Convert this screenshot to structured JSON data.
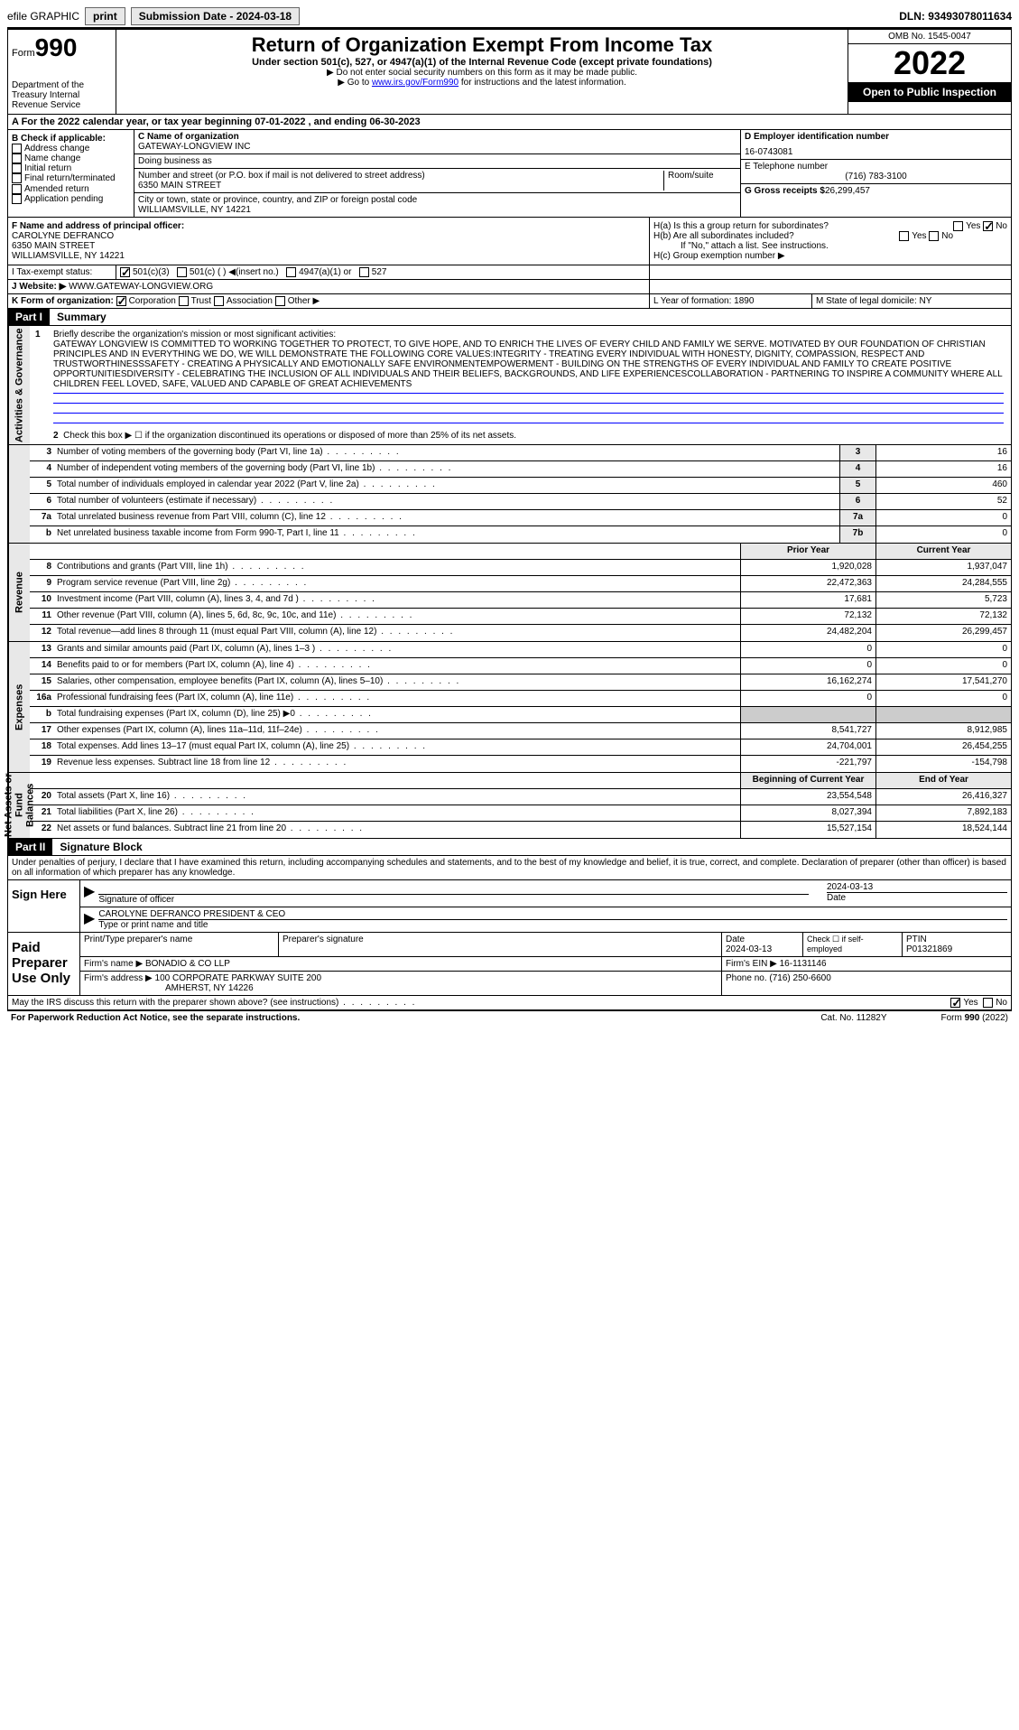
{
  "topbar": {
    "efile": "efile GRAPHIC",
    "print": "print",
    "subdate_lbl": "Submission Date - 2024-03-18",
    "dln": "DLN: 93493078011634"
  },
  "header": {
    "form": "Form",
    "form_num": "990",
    "dept": "Department of the Treasury Internal Revenue Service",
    "title": "Return of Organization Exempt From Income Tax",
    "sub": "Under section 501(c), 527, or 4947(a)(1) of the Internal Revenue Code (except private foundations)",
    "note1": "▶ Do not enter social security numbers on this form as it may be made public.",
    "note2_pre": "▶ Go to ",
    "note2_link": "www.irs.gov/Form990",
    "note2_post": " for instructions and the latest information.",
    "omb": "OMB No. 1545-0047",
    "year": "2022",
    "open": "Open to Public Inspection"
  },
  "rowA": "A For the 2022 calendar year, or tax year beginning 07-01-2022   , and ending 06-30-2023",
  "colB": {
    "hdr": "B Check if applicable:",
    "items": [
      "Address change",
      "Name change",
      "Initial return",
      "Final return/terminated",
      "Amended return",
      "Application pending"
    ]
  },
  "colC": {
    "name_lbl": "C Name of organization",
    "name": "GATEWAY-LONGVIEW INC",
    "dba_lbl": "Doing business as",
    "dba": "",
    "addr_lbl": "Number and street (or P.O. box if mail is not delivered to street address)",
    "addr": "6350 MAIN STREET",
    "room_lbl": "Room/suite",
    "city_lbl": "City or town, state or province, country, and ZIP or foreign postal code",
    "city": "WILLIAMSVILLE, NY  14221"
  },
  "colD": {
    "ein_lbl": "D Employer identification number",
    "ein": "16-0743081",
    "tel_lbl": "E Telephone number",
    "tel": "(716) 783-3100",
    "gross_lbl": "G Gross receipts $",
    "gross": "26,299,457"
  },
  "colF": {
    "lbl": "F  Name and address of principal officer:",
    "name": "CAROLYNE DEFRANCO",
    "addr1": "6350 MAIN STREET",
    "addr2": "WILLIAMSVILLE, NY  14221"
  },
  "colH": {
    "ha": "H(a)  Is this a group return for subordinates?",
    "hb": "H(b)  Are all subordinates included?",
    "hb_note": "If \"No,\" attach a list. See instructions.",
    "hc": "H(c)  Group exemption number ▶",
    "yes": "Yes",
    "no": "No"
  },
  "status": {
    "i_lbl": "I    Tax-exempt status:",
    "opts": [
      "501(c)(3)",
      "501(c) (  ) ◀(insert no.)",
      "4947(a)(1) or",
      "527"
    ],
    "j_lbl": "J   Website: ▶",
    "website": "WWW.GATEWAY-LONGVIEW.ORG"
  },
  "rowK": {
    "k_lbl": "K Form of organization:",
    "opts": [
      "Corporation",
      "Trust",
      "Association",
      "Other ▶"
    ],
    "l_lbl": "L Year of formation: 1890",
    "m_lbl": "M State of legal domicile: NY"
  },
  "part1": {
    "hdr": "Part I",
    "title": "Summary",
    "mission_lbl": "Briefly describe the organization's mission or most significant activities:",
    "mission": "GATEWAY LONGVIEW IS COMMITTED TO WORKING TOGETHER TO PROTECT, TO GIVE HOPE, AND TO ENRICH THE LIVES OF EVERY CHILD AND FAMILY WE SERVE. MOTIVATED BY OUR FOUNDATION OF CHRISTIAN PRINCIPLES AND IN EVERYTHING WE DO, WE WILL DEMONSTRATE THE FOLLOWING CORE VALUES:INTEGRITY - TREATING EVERY INDIVIDUAL WITH HONESTY, DIGNITY, COMPASSION, RESPECT AND TRUSTWORTHINESSSAFETY - CREATING A PHYSICALLY AND EMOTIONALLY SAFE ENVIRONMENTEMPOWERMENT - BUILDING ON THE STRENGTHS OF EVERY INDIVIDUAL AND FAMILY TO CREATE POSITIVE OPPORTUNITIESDIVERSITY - CELEBRATING THE INCLUSION OF ALL INDIVIDUALS AND THEIR BELIEFS, BACKGROUNDS, AND LIFE EXPERIENCESCOLLABORATION - PARTNERING TO INSPIRE A COMMUNITY WHERE ALL CHILDREN FEEL LOVED, SAFE, VALUED AND CAPABLE OF GREAT ACHIEVEMENTS",
    "line2": "Check this box ▶ ☐  if the organization discontinued its operations or disposed of more than 25% of its net assets."
  },
  "vtabs": {
    "gov": "Activities & Governance",
    "rev": "Revenue",
    "exp": "Expenses",
    "net": "Net Assets or Fund Balances"
  },
  "lines_gov": [
    {
      "n": "3",
      "d": "Number of voting members of the governing body (Part VI, line 1a)",
      "box": "3",
      "v": "16"
    },
    {
      "n": "4",
      "d": "Number of independent voting members of the governing body (Part VI, line 1b)",
      "box": "4",
      "v": "16"
    },
    {
      "n": "5",
      "d": "Total number of individuals employed in calendar year 2022 (Part V, line 2a)",
      "box": "5",
      "v": "460"
    },
    {
      "n": "6",
      "d": "Total number of volunteers (estimate if necessary)",
      "box": "6",
      "v": "52"
    },
    {
      "n": "7a",
      "d": "Total unrelated business revenue from Part VIII, column (C), line 12",
      "box": "7a",
      "v": "0"
    },
    {
      "n": "b",
      "d": "Net unrelated business taxable income from Form 990-T, Part I, line 11",
      "box": "7b",
      "v": "0"
    }
  ],
  "cols": {
    "prior": "Prior Year",
    "curr": "Current Year",
    "beg": "Beginning of Current Year",
    "end": "End of Year"
  },
  "lines_rev": [
    {
      "n": "8",
      "d": "Contributions and grants (Part VIII, line 1h)",
      "p": "1,920,028",
      "c": "1,937,047"
    },
    {
      "n": "9",
      "d": "Program service revenue (Part VIII, line 2g)",
      "p": "22,472,363",
      "c": "24,284,555"
    },
    {
      "n": "10",
      "d": "Investment income (Part VIII, column (A), lines 3, 4, and 7d )",
      "p": "17,681",
      "c": "5,723"
    },
    {
      "n": "11",
      "d": "Other revenue (Part VIII, column (A), lines 5, 6d, 8c, 9c, 10c, and 11e)",
      "p": "72,132",
      "c": "72,132"
    },
    {
      "n": "12",
      "d": "Total revenue—add lines 8 through 11 (must equal Part VIII, column (A), line 12)",
      "p": "24,482,204",
      "c": "26,299,457"
    }
  ],
  "lines_exp": [
    {
      "n": "13",
      "d": "Grants and similar amounts paid (Part IX, column (A), lines 1–3 )",
      "p": "0",
      "c": "0"
    },
    {
      "n": "14",
      "d": "Benefits paid to or for members (Part IX, column (A), line 4)",
      "p": "0",
      "c": "0"
    },
    {
      "n": "15",
      "d": "Salaries, other compensation, employee benefits (Part IX, column (A), lines 5–10)",
      "p": "16,162,274",
      "c": "17,541,270"
    },
    {
      "n": "16a",
      "d": "Professional fundraising fees (Part IX, column (A), line 11e)",
      "p": "0",
      "c": "0"
    },
    {
      "n": "b",
      "d": "Total fundraising expenses (Part IX, column (D), line 25) ▶0",
      "p": "",
      "c": "",
      "shade": true
    },
    {
      "n": "17",
      "d": "Other expenses (Part IX, column (A), lines 11a–11d, 11f–24e)",
      "p": "8,541,727",
      "c": "8,912,985"
    },
    {
      "n": "18",
      "d": "Total expenses. Add lines 13–17 (must equal Part IX, column (A), line 25)",
      "p": "24,704,001",
      "c": "26,454,255"
    },
    {
      "n": "19",
      "d": "Revenue less expenses. Subtract line 18 from line 12",
      "p": "-221,797",
      "c": "-154,798"
    }
  ],
  "lines_net": [
    {
      "n": "20",
      "d": "Total assets (Part X, line 16)",
      "p": "23,554,548",
      "c": "26,416,327"
    },
    {
      "n": "21",
      "d": "Total liabilities (Part X, line 26)",
      "p": "8,027,394",
      "c": "7,892,183"
    },
    {
      "n": "22",
      "d": "Net assets or fund balances. Subtract line 21 from line 20",
      "p": "15,527,154",
      "c": "18,524,144"
    }
  ],
  "part2": {
    "hdr": "Part II",
    "title": "Signature Block",
    "decl": "Under penalties of perjury, I declare that I have examined this return, including accompanying schedules and statements, and to the best of my knowledge and belief, it is true, correct, and complete. Declaration of preparer (other than officer) is based on all information of which preparer has any knowledge."
  },
  "sign": {
    "lbl": "Sign Here",
    "sig_lbl": "Signature of officer",
    "date": "2024-03-13",
    "date_lbl": "Date",
    "name": "CAROLYNE DEFRANCO  PRESIDENT & CEO",
    "type_lbl": "Type or print name and title"
  },
  "prep": {
    "lbl": "Paid Preparer Use Only",
    "name_lbl": "Print/Type preparer's name",
    "sig_lbl": "Preparer's signature",
    "date_lbl": "Date",
    "date": "2024-03-13",
    "check_lbl": "Check ☐ if self-employed",
    "ptin_lbl": "PTIN",
    "ptin": "P01321869",
    "firm_lbl": "Firm's name    ▶",
    "firm": "BONADIO & CO LLP",
    "ein_lbl": "Firm's EIN ▶",
    "ein": "16-1131146",
    "addr_lbl": "Firm's address ▶",
    "addr": "100 CORPORATE PARKWAY SUITE 200",
    "addr2": "AMHERST, NY  14226",
    "phone_lbl": "Phone no.",
    "phone": "(716) 250-6600"
  },
  "footer": {
    "q": "May the IRS discuss this return with the preparer shown above? (see instructions)",
    "yes": "Yes",
    "no": "No",
    "pra": "For Paperwork Reduction Act Notice, see the separate instructions.",
    "cat": "Cat. No. 11282Y",
    "form": "Form 990 (2022)"
  }
}
